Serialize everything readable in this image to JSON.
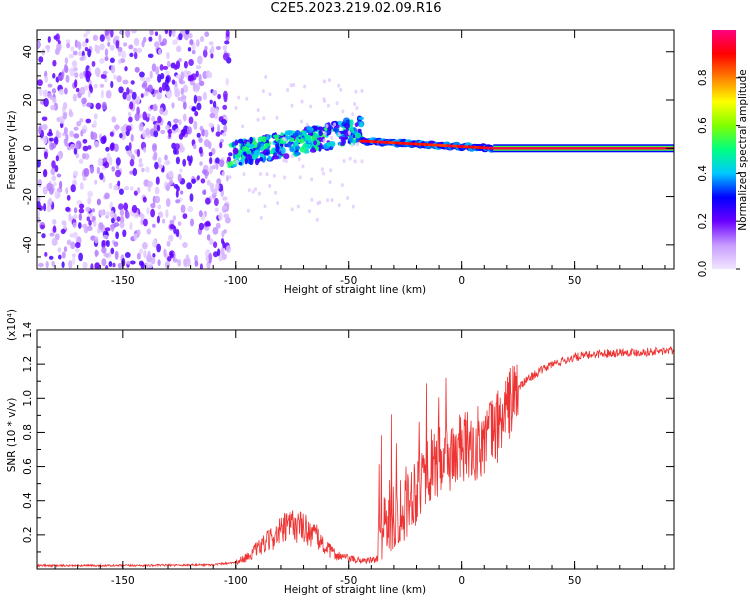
{
  "page_title": "C2E5.2023.219.02.09.R16",
  "chart_data": [
    {
      "type": "heatmap",
      "title": "C2E5.2023.219.02.09.R16",
      "xlabel": "Height of straight line (km)",
      "ylabel": "Frequency (Hz)",
      "xlim": [
        -188,
        94
      ],
      "ylim": [
        -50,
        49
      ],
      "x_ticks": [
        -150,
        -100,
        -50,
        0,
        50
      ],
      "y_ticks": [
        -40,
        -20,
        0,
        20,
        40
      ],
      "colorbar": {
        "label": "Normalized spectral amplitude",
        "range": [
          0,
          1
        ],
        "ticks": [
          0.0,
          0.2,
          0.4,
          0.6,
          0.8
        ],
        "colors": [
          "#f0e6ff",
          "#c89cff",
          "#6a00ff",
          "#0000ff",
          "#00c8ff",
          "#00ff80",
          "#80ff00",
          "#ffff00",
          "#ff8000",
          "#ff0000",
          "#ff0080"
        ]
      },
      "regions": [
        {
          "name": "noise",
          "x_range": [
            -188,
            -103
          ],
          "freq_range": [
            -50,
            49
          ],
          "amplitude": 0.2
        },
        {
          "name": "transition",
          "x_range": [
            -103,
            -44
          ],
          "freq_center_start": -3,
          "freq_center_end": 8,
          "amplitude": 0.4
        },
        {
          "name": "stepped-line",
          "x_range": [
            -44,
            14
          ],
          "freq_center_start": 3,
          "freq_center_end": 0,
          "amplitude": 0.85
        },
        {
          "name": "steady-line",
          "x_range": [
            14,
            94
          ],
          "freq_center": 0,
          "amplitude": 0.95
        }
      ]
    },
    {
      "type": "line",
      "xlabel": "Height of straight line (km)",
      "ylabel": "SNR (10 * v/v)",
      "y_multiplier": "(x10⁴)",
      "xlim": [
        -188,
        94
      ],
      "ylim": [
        0,
        1.4
      ],
      "x_ticks": [
        -150,
        -100,
        -50,
        0,
        50
      ],
      "y_ticks": [
        0.2,
        0.4,
        0.6,
        0.8,
        1.0,
        1.2,
        1.4
      ],
      "series": [
        {
          "color": "#ee3333",
          "x": [
            -188,
            -150,
            -110,
            -100,
            -95,
            -90,
            -85,
            -80,
            -75,
            -70,
            -65,
            -60,
            -55,
            -50,
            -45,
            -40,
            -37,
            -35,
            -30,
            -25,
            -20,
            -15,
            -10,
            -5,
            0,
            5,
            10,
            15,
            20,
            25,
            30,
            40,
            50,
            60,
            70,
            80,
            94
          ],
          "y": [
            0.02,
            0.02,
            0.025,
            0.04,
            0.07,
            0.12,
            0.17,
            0.22,
            0.26,
            0.24,
            0.2,
            0.12,
            0.08,
            0.06,
            0.05,
            0.05,
            0.06,
            0.27,
            0.32,
            0.38,
            0.48,
            0.6,
            0.62,
            0.66,
            0.7,
            0.72,
            0.76,
            0.82,
            0.94,
            1.06,
            1.12,
            1.2,
            1.24,
            1.26,
            1.27,
            1.27,
            1.28
          ]
        }
      ]
    }
  ]
}
